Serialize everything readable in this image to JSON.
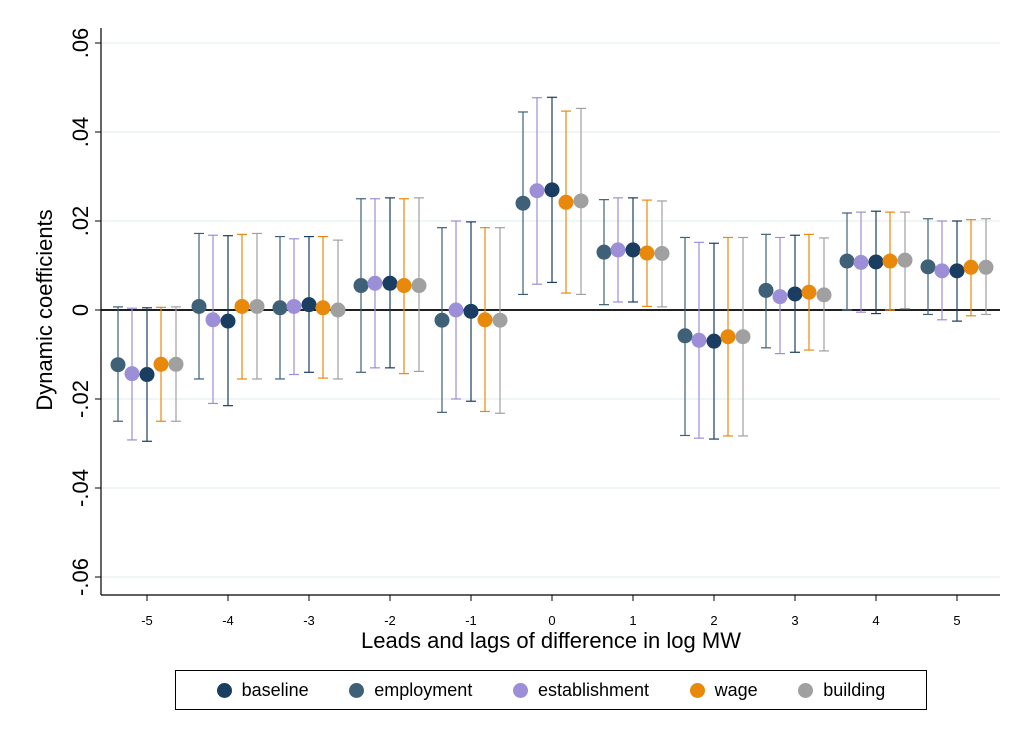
{
  "chart_data": {
    "type": "scatter",
    "subtype": "coefficient-plot-with-confidence-intervals",
    "xlabel": "Leads and lags of difference in log MW",
    "ylabel": "Dynamic coefficients",
    "categories": [
      "-5",
      "-4",
      "-3",
      "-2",
      "-1",
      "0",
      "1",
      "2",
      "3",
      "4",
      "5"
    ],
    "yticks": [
      ".06",
      ".04",
      ".02",
      "0",
      "-.02",
      "-.04",
      "-.06"
    ],
    "ylim": [
      -0.06,
      0.06
    ],
    "grid": true,
    "reference_line_y": 0,
    "legend_position": "bottom",
    "series": [
      {
        "name": "baseline",
        "color": "#1a3e62",
        "values": [
          -0.0145,
          -0.0025,
          0.0012,
          0.006,
          -0.0003,
          0.027,
          0.0135,
          -0.007,
          0.0036,
          0.0108,
          0.0088
        ],
        "ci_low": [
          -0.0295,
          -0.0215,
          -0.014,
          -0.013,
          -0.0205,
          0.0062,
          0.0018,
          -0.029,
          -0.0095,
          -0.0008,
          -0.0025
        ],
        "ci_high": [
          0.0005,
          0.0167,
          0.0165,
          0.0252,
          0.0198,
          0.0478,
          0.0252,
          0.015,
          0.0168,
          0.0222,
          0.02
        ]
      },
      {
        "name": "employment",
        "color": "#3e6177",
        "values": [
          -0.0123,
          0.0008,
          0.0005,
          0.0055,
          -0.0023,
          0.024,
          0.013,
          -0.0058,
          0.0044,
          0.011,
          0.0097
        ],
        "ci_low": [
          -0.025,
          -0.0155,
          -0.0155,
          -0.014,
          -0.023,
          0.0035,
          0.0012,
          -0.0282,
          -0.0085,
          0.0,
          -0.001
        ],
        "ci_high": [
          0.0007,
          0.0172,
          0.0165,
          0.025,
          0.0185,
          0.0445,
          0.0248,
          0.0163,
          0.017,
          0.0218,
          0.0205
        ]
      },
      {
        "name": "establishment",
        "color": "#9c8fd8",
        "values": [
          -0.0143,
          -0.0022,
          0.0008,
          0.006,
          0.0,
          0.0268,
          0.0135,
          -0.0068,
          0.003,
          0.0107,
          0.0088
        ],
        "ci_low": [
          -0.0292,
          -0.021,
          -0.0145,
          -0.013,
          -0.02,
          0.0058,
          0.0018,
          -0.0288,
          -0.0098,
          -0.0005,
          -0.0022
        ],
        "ci_high": [
          0.0004,
          0.0168,
          0.016,
          0.025,
          0.02,
          0.0477,
          0.0252,
          0.0152,
          0.0163,
          0.022,
          0.02
        ]
      },
      {
        "name": "wage",
        "color": "#e8890c",
        "values": [
          -0.0122,
          0.0008,
          0.0005,
          0.0055,
          -0.0022,
          0.0242,
          0.0128,
          -0.006,
          0.004,
          0.011,
          0.0096
        ],
        "ci_low": [
          -0.025,
          -0.0155,
          -0.0153,
          -0.0143,
          -0.0228,
          0.0038,
          0.0008,
          -0.0283,
          -0.009,
          0.0,
          -0.0013
        ],
        "ci_high": [
          0.0006,
          0.017,
          0.0165,
          0.025,
          0.0185,
          0.0447,
          0.0247,
          0.0163,
          0.017,
          0.022,
          0.0203
        ]
      },
      {
        "name": "building",
        "color": "#a0a0a0",
        "values": [
          -0.0122,
          0.0008,
          0.0,
          0.0055,
          -0.0023,
          0.0245,
          0.0127,
          -0.006,
          0.0034,
          0.0112,
          0.0096
        ],
        "ci_low": [
          -0.025,
          -0.0155,
          -0.0155,
          -0.0138,
          -0.0232,
          0.0035,
          0.0007,
          -0.0283,
          -0.0092,
          0.0003,
          -0.001
        ],
        "ci_high": [
          0.0007,
          0.0172,
          0.0157,
          0.0252,
          0.0185,
          0.0453,
          0.0245,
          0.0163,
          0.0162,
          0.022,
          0.0205
        ]
      }
    ]
  }
}
